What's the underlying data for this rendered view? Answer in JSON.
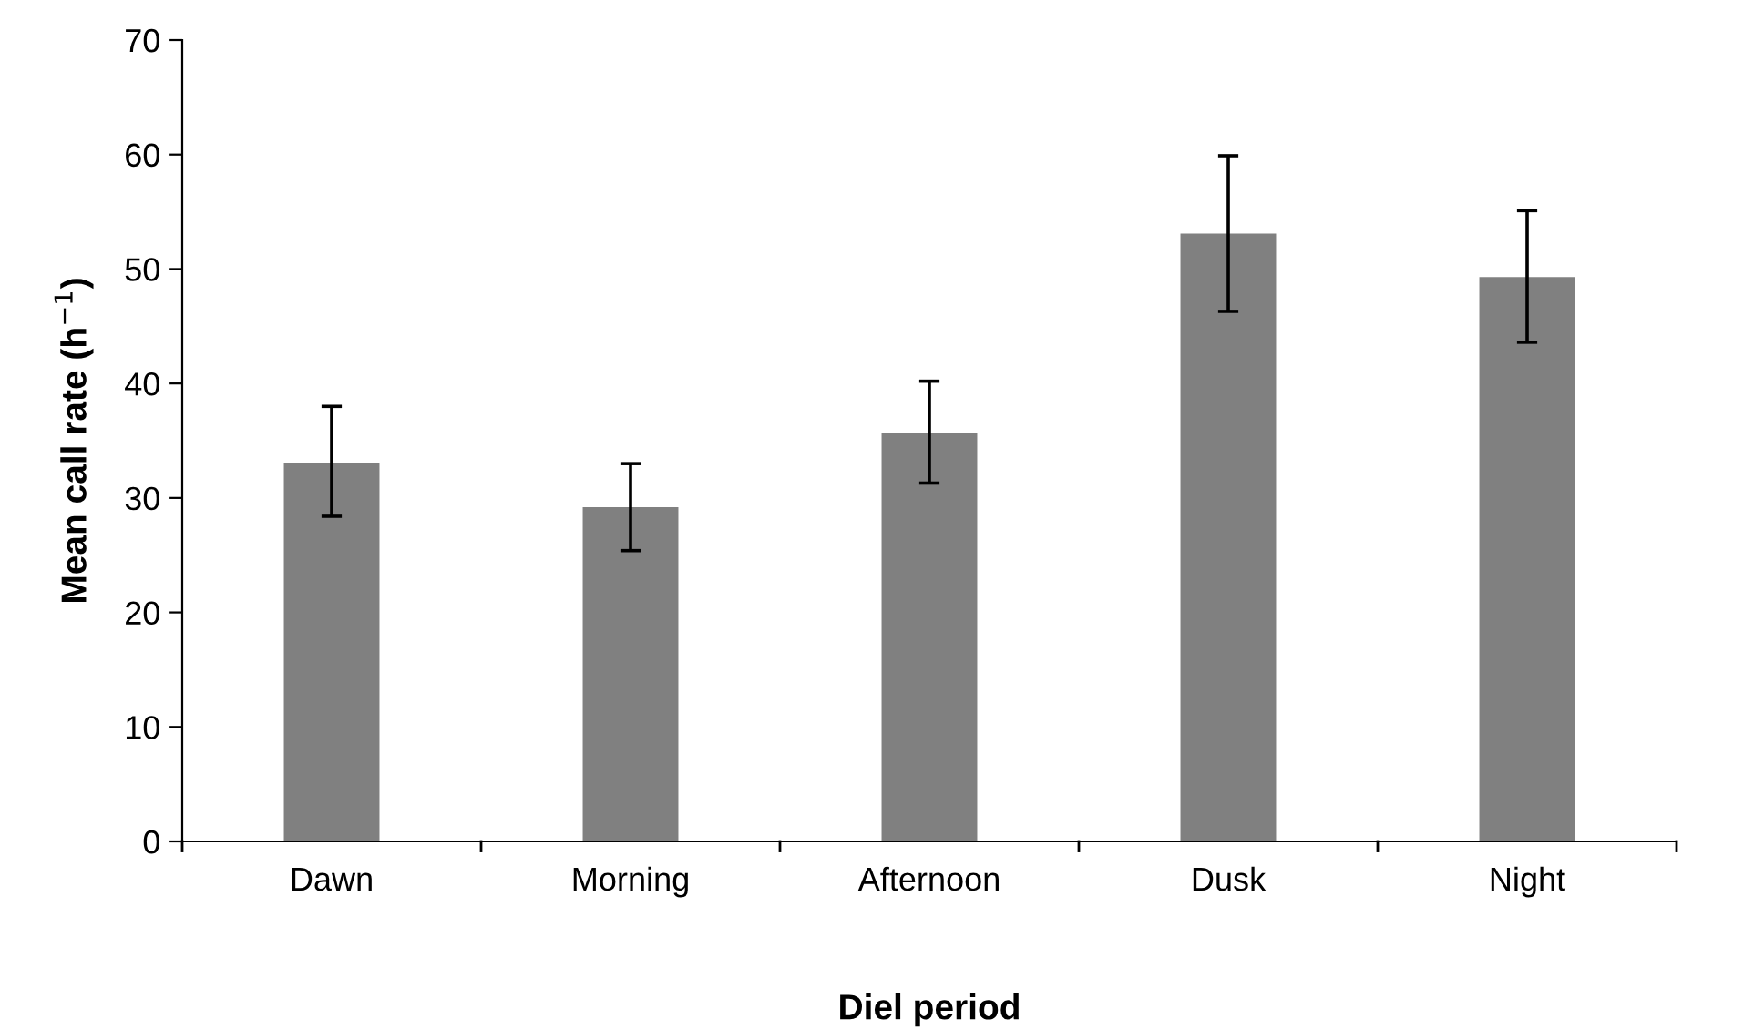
{
  "chart_data": {
    "type": "bar",
    "xlabel": "Diel period",
    "ylabel": "Mean call rate (h$^{−1}$)",
    "categories": [
      "Dawn",
      "Morning",
      "Afternoon",
      "Dusk",
      "Night"
    ],
    "values": [
      33.1,
      29.2,
      35.7,
      53.1,
      49.3
    ],
    "errors": [
      [
        28.4,
        38.0
      ],
      [
        25.4,
        33.0
      ],
      [
        31.3,
        40.2
      ],
      [
        46.3,
        59.9
      ],
      [
        43.6,
        55.1
      ]
    ],
    "color": "#808080",
    "ylim": [
      0,
      70
    ],
    "yticks": [
      0,
      10,
      20,
      30,
      40,
      50,
      60,
      70
    ],
    "grid": false,
    "legend": false
  }
}
